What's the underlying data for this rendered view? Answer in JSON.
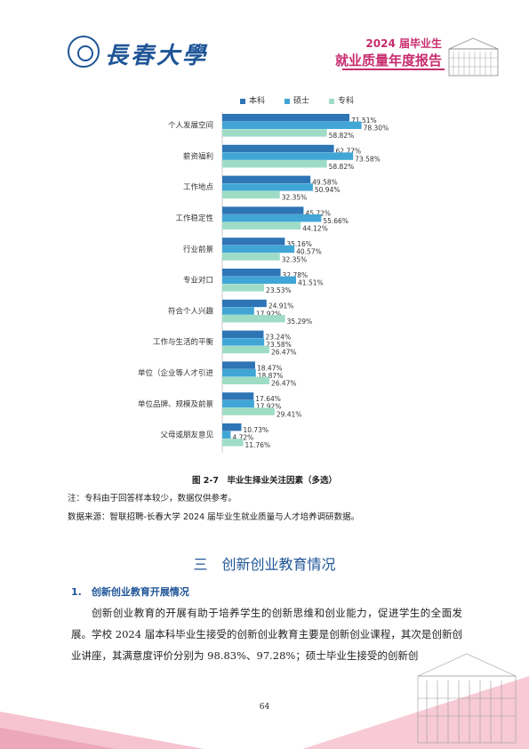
{
  "header": {
    "university": "長春大學",
    "report_line1": "2024 届毕业生",
    "report_line2": "就业质量年度报告"
  },
  "chart_data": {
    "type": "bar",
    "orientation": "horizontal",
    "categories": [
      "个人发展空间",
      "薪资福利",
      "工作地点",
      "工作稳定性",
      "行业前景",
      "专业对口",
      "符合个人兴趣",
      "工作与生活的平衡",
      "单位（企业等人才引进",
      "单位品牌、规模及前景",
      "父母或朋友意见"
    ],
    "series": [
      {
        "name": "本科",
        "color": "#2e75b6",
        "values": [
          71.51,
          62.77,
          49.58,
          45.72,
          35.16,
          32.78,
          24.91,
          23.24,
          18.47,
          17.64,
          10.73
        ]
      },
      {
        "name": "硕士",
        "color": "#41a6d6",
        "values": [
          78.3,
          73.58,
          50.94,
          55.66,
          40.57,
          41.51,
          17.92,
          23.58,
          18.87,
          17.92,
          4.72
        ]
      },
      {
        "name": "专科",
        "color": "#9fdcc6",
        "values": [
          58.82,
          58.82,
          32.35,
          44.12,
          32.35,
          23.53,
          35.29,
          26.47,
          26.47,
          29.41,
          11.76
        ]
      }
    ],
    "xlim": [
      0,
      100
    ],
    "value_suffix": "%",
    "legend_position": "top"
  },
  "caption": "图 2-7　毕业生择业关注因素（多选）",
  "note1": "注：专科由于回答样本较少，数据仅供参考。",
  "note2": "数据来源：智联招聘-长春大学 2024 届毕业生就业质量与人才培养调研数据。",
  "section_title": "三　创新创业教育情况",
  "subsection_title": "1.　创新创业教育开展情况",
  "paragraph": "创新创业教育的开展有助于培养学生的创新思维和创业能力，促进学生的全面发展。学校 2024 届本科毕业生接受的创新创业教育主要是创新创业课程，其次是创新创业讲座，其满意度评价分别为 98.83%、97.28%；硕士毕业生接受的创新创",
  "page_number": "64",
  "colors": {
    "accent": "#1f5597",
    "pink": "#c72c6f"
  }
}
